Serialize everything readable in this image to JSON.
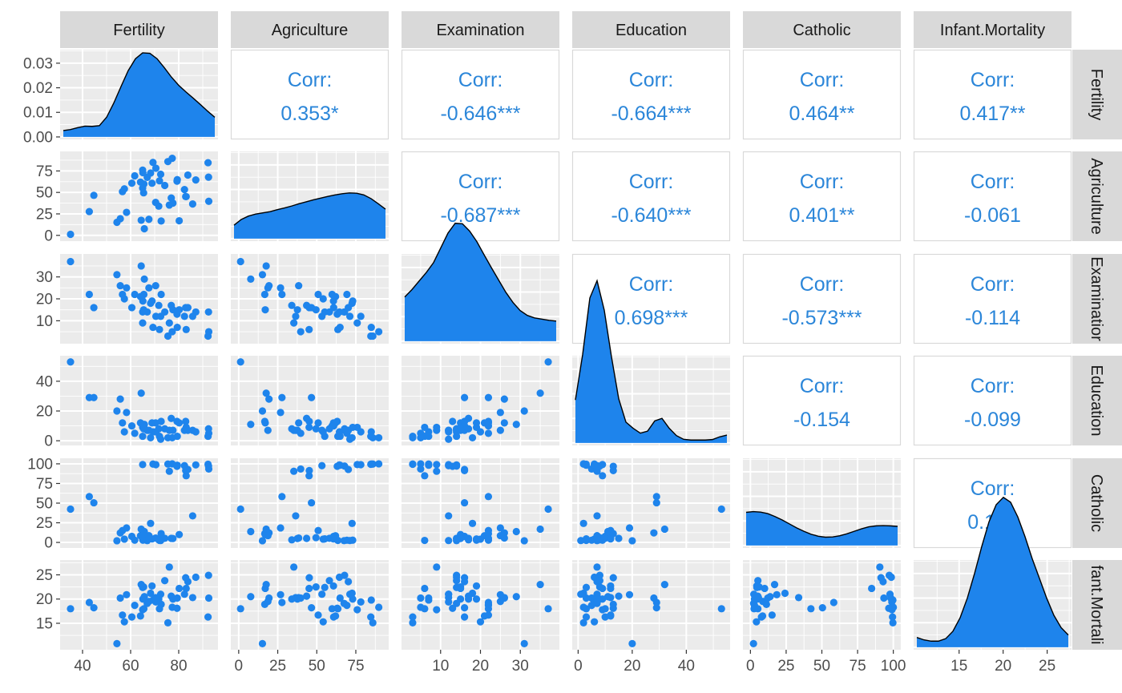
{
  "chart_data": {
    "type": "scatter",
    "chart_kind": "pairs-plot (scatterplot matrix)",
    "variables": [
      "Fertility",
      "Agriculture",
      "Examination",
      "Education",
      "Catholic",
      "Infant.Mortality"
    ],
    "row_strip_labels": [
      "Fertility",
      "Agriculture",
      "Examination",
      "Education",
      "Catholic",
      "nfant.Mortali"
    ],
    "row_strip_displays": [
      "Fertility",
      "Agriculture",
      "Examinatior",
      "Education",
      "Catholic",
      "fant.Mortali"
    ],
    "axes": {
      "Fertility": {
        "range": [
          32,
          95
        ],
        "ticks": [
          40,
          60,
          80
        ]
      },
      "Agriculture": {
        "range": [
          -3,
          94
        ],
        "ticks": [
          0,
          25,
          50,
          75
        ]
      },
      "Examination": {
        "range": [
          1,
          39
        ],
        "ticks": [
          10,
          20,
          30
        ]
      },
      "Education": {
        "range": [
          -1,
          55
        ],
        "ticks": [
          0,
          20,
          40
        ]
      },
      "Catholic": {
        "range": [
          -3,
          103
        ],
        "ticks": [
          0,
          25,
          50,
          75,
          100
        ]
      },
      "Infant.Mortality": {
        "range": [
          10.2,
          27.4
        ],
        "ticks": [
          15,
          20,
          25
        ]
      }
    },
    "density_axis": {
      "range": [
        -0.001,
        0.0355
      ],
      "ticks": [
        "0.00",
        "0.01",
        "0.02",
        "0.03"
      ]
    },
    "correlations": [
      {
        "row": "Fertility",
        "col": "Agriculture",
        "label": "Corr:",
        "value": "0.353*"
      },
      {
        "row": "Fertility",
        "col": "Examination",
        "label": "Corr:",
        "value": "-0.646***"
      },
      {
        "row": "Fertility",
        "col": "Education",
        "label": "Corr:",
        "value": "-0.664***"
      },
      {
        "row": "Fertility",
        "col": "Catholic",
        "label": "Corr:",
        "value": "0.464**"
      },
      {
        "row": "Fertility",
        "col": "Infant.Mortality",
        "label": "Corr:",
        "value": "0.417**"
      },
      {
        "row": "Agriculture",
        "col": "Examination",
        "label": "Corr:",
        "value": "-0.687***"
      },
      {
        "row": "Agriculture",
        "col": "Education",
        "label": "Corr:",
        "value": "-0.640***"
      },
      {
        "row": "Agriculture",
        "col": "Catholic",
        "label": "Corr:",
        "value": "0.401**"
      },
      {
        "row": "Agriculture",
        "col": "Infant.Mortality",
        "label": "Corr:",
        "value": "-0.061"
      },
      {
        "row": "Examination",
        "col": "Education",
        "label": "Corr:",
        "value": "0.698***"
      },
      {
        "row": "Examination",
        "col": "Catholic",
        "label": "Corr:",
        "value": "-0.573***"
      },
      {
        "row": "Examination",
        "col": "Infant.Mortality",
        "label": "Corr:",
        "value": "-0.114"
      },
      {
        "row": "Education",
        "col": "Catholic",
        "label": "Corr:",
        "value": "-0.154"
      },
      {
        "row": "Education",
        "col": "Infant.Mortality",
        "label": "Corr:",
        "value": "-0.099"
      },
      {
        "row": "Catholic",
        "col": "Infant.Mortality",
        "label": "Corr:",
        "value": "0.175"
      }
    ],
    "observations": [
      [
        80.2,
        17.0,
        15,
        12,
        9.96,
        22.2
      ],
      [
        83.1,
        45.1,
        6,
        9,
        84.84,
        22.2
      ],
      [
        92.5,
        39.7,
        5,
        5,
        93.4,
        20.2
      ],
      [
        85.8,
        36.5,
        12,
        7,
        33.77,
        20.3
      ],
      [
        76.9,
        43.5,
        17,
        15,
        5.16,
        20.6
      ],
      [
        76.1,
        35.3,
        9,
        7,
        90.57,
        26.6
      ],
      [
        83.8,
        70.2,
        16,
        7,
        92.85,
        23.6
      ],
      [
        92.4,
        67.8,
        14,
        8,
        97.16,
        24.9
      ],
      [
        82.4,
        53.3,
        12,
        7,
        97.67,
        21.0
      ],
      [
        82.9,
        45.2,
        16,
        13,
        91.38,
        24.4
      ],
      [
        87.1,
        64.5,
        14,
        6,
        98.61,
        24.5
      ],
      [
        64.1,
        62.0,
        21,
        12,
        8.52,
        16.5
      ],
      [
        66.9,
        67.5,
        14,
        7,
        2.27,
        19.1
      ],
      [
        68.9,
        60.7,
        19,
        12,
        4.43,
        22.7
      ],
      [
        61.7,
        69.3,
        22,
        5,
        2.82,
        18.7
      ],
      [
        68.3,
        72.6,
        18,
        2,
        24.2,
        21.2
      ],
      [
        71.7,
        34.0,
        17,
        8,
        3.3,
        20.0
      ],
      [
        55.7,
        19.4,
        26,
        28,
        12.11,
        20.2
      ],
      [
        54.3,
        15.2,
        31,
        20,
        2.15,
        10.8
      ],
      [
        65.1,
        73.0,
        19,
        9,
        2.84,
        20.0
      ],
      [
        65.5,
        59.8,
        22,
        10,
        5.23,
        18.0
      ],
      [
        65.0,
        55.1,
        14,
        3,
        4.52,
        22.4
      ],
      [
        56.6,
        50.9,
        22,
        12,
        15.14,
        16.7
      ],
      [
        57.4,
        54.1,
        20,
        6,
        4.2,
        15.3
      ],
      [
        72.5,
        71.2,
        12,
        1,
        2.4,
        21.0
      ],
      [
        74.2,
        58.1,
        14,
        8,
        5.23,
        23.8
      ],
      [
        72.0,
        63.5,
        6,
        3,
        2.56,
        18.0
      ],
      [
        60.5,
        60.8,
        16,
        10,
        7.72,
        16.3
      ],
      [
        58.3,
        26.8,
        25,
        19,
        18.46,
        20.9
      ],
      [
        65.4,
        49.5,
        15,
        8,
        6.1,
        22.5
      ],
      [
        75.5,
        85.9,
        3,
        2,
        99.71,
        15.1
      ],
      [
        69.3,
        84.9,
        7,
        6,
        99.68,
        19.8
      ],
      [
        77.3,
        89.7,
        5,
        2,
        100.0,
        18.3
      ],
      [
        70.5,
        78.2,
        12,
        6,
        98.96,
        19.4
      ],
      [
        79.4,
        64.9,
        7,
        3,
        98.22,
        20.2
      ],
      [
        65.0,
        75.9,
        9,
        9,
        99.06,
        17.8
      ],
      [
        92.2,
        84.6,
        3,
        3,
        99.46,
        16.3
      ],
      [
        79.3,
        63.1,
        13,
        13,
        96.83,
        18.1
      ],
      [
        70.4,
        38.4,
        26,
        12,
        5.62,
        20.3
      ],
      [
        65.7,
        7.7,
        29,
        11,
        13.79,
        20.5
      ],
      [
        72.7,
        16.7,
        22,
        13,
        11.22,
        18.9
      ],
      [
        64.4,
        17.6,
        35,
        32,
        16.92,
        23.0
      ],
      [
        77.6,
        37.6,
        15,
        7,
        4.97,
        20.0
      ],
      [
        67.6,
        18.7,
        25,
        7,
        8.65,
        19.5
      ],
      [
        35.0,
        1.2,
        37,
        53,
        42.34,
        18.0
      ],
      [
        44.7,
        46.6,
        16,
        29,
        50.43,
        18.2
      ],
      [
        42.8,
        27.7,
        22,
        29,
        58.33,
        19.3
      ]
    ],
    "densities": [
      [
        0.0026,
        0.003,
        0.0038,
        0.0044,
        0.0043,
        0.0046,
        0.008,
        0.0138,
        0.0205,
        0.027,
        0.0318,
        0.0342,
        0.034,
        0.0318,
        0.0282,
        0.0243,
        0.021,
        0.0183,
        0.0158,
        0.0132,
        0.0105,
        0.008
      ],
      [
        0.0055,
        0.0078,
        0.0092,
        0.01,
        0.0105,
        0.011,
        0.0118,
        0.0125,
        0.0133,
        0.0142,
        0.015,
        0.0158,
        0.0165,
        0.0172,
        0.0178,
        0.0183,
        0.0186,
        0.0185,
        0.0178,
        0.0163,
        0.0142,
        0.012
      ],
      [
        0.018,
        0.021,
        0.0245,
        0.028,
        0.032,
        0.038,
        0.044,
        0.048,
        0.0478,
        0.0448,
        0.0405,
        0.0352,
        0.03,
        0.025,
        0.02,
        0.0158,
        0.0125,
        0.0105,
        0.0095,
        0.009,
        0.0085,
        0.0082
      ],
      [
        0.0175,
        0.036,
        0.059,
        0.066,
        0.054,
        0.035,
        0.018,
        0.0085,
        0.006,
        0.004,
        0.0048,
        0.009,
        0.01,
        0.006,
        0.003,
        0.0015,
        0.0012,
        0.0012,
        0.0012,
        0.0014,
        0.0025,
        0.0032
      ],
      [
        0.0135,
        0.0138,
        0.0136,
        0.013,
        0.0118,
        0.0104,
        0.0088,
        0.0072,
        0.0058,
        0.0046,
        0.0038,
        0.0034,
        0.0035,
        0.004,
        0.0048,
        0.0058,
        0.0068,
        0.0076,
        0.008,
        0.0081,
        0.008,
        0.0078
      ],
      [
        0.004,
        0.003,
        0.0025,
        0.0025,
        0.0035,
        0.0065,
        0.012,
        0.02,
        0.03,
        0.041,
        0.051,
        0.058,
        0.061,
        0.059,
        0.053,
        0.045,
        0.036,
        0.028,
        0.02,
        0.013,
        0.008,
        0.005
      ]
    ],
    "grid": true,
    "point_color": "#1e84ec",
    "density_fill": "#1e84ec",
    "density_line": "#000000",
    "panel_background": "#ebebeb",
    "gridline_color": "#ffffff",
    "strip_background": "#d9d9d9",
    "correlation_text_color": "#2b86d9",
    "tick_label_color": "#4d4d4d"
  }
}
